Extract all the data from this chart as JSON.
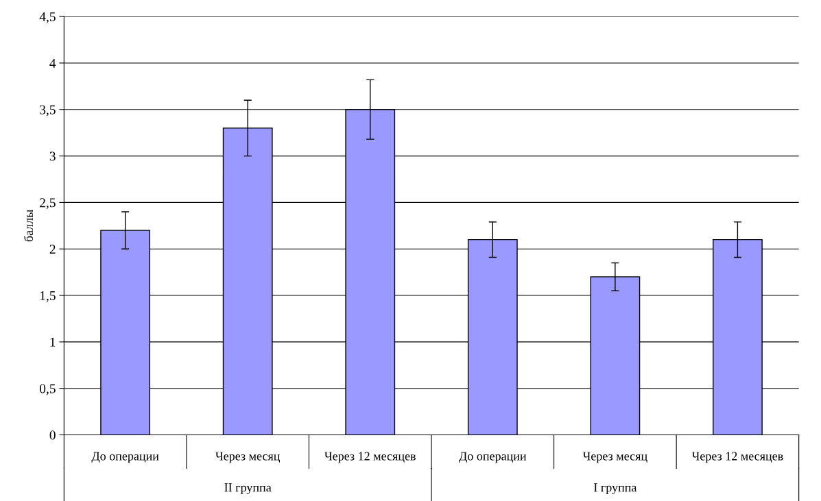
{
  "chart_data": {
    "type": "bar",
    "ylabel": "баллы",
    "categories": [
      "До операции",
      "Через месяц",
      "Через 12 месяцев",
      "До операции",
      "Через месяц",
      "Через 12 месяцев"
    ],
    "values": [
      2.2,
      3.3,
      3.5,
      2.1,
      1.7,
      2.1
    ],
    "errors": [
      0.2,
      0.3,
      0.32,
      0.19,
      0.15,
      0.19
    ],
    "color": "#9999ff",
    "ylim": [
      0,
      4.5
    ],
    "yticks": [
      0,
      {
        "value": 0.5,
        "label": "0,5"
      },
      1,
      {
        "value": 1.5,
        "label": "1,5"
      },
      2,
      {
        "value": 2.5,
        "label": "2,5"
      },
      3,
      {
        "value": 3.5,
        "label": "3,5"
      },
      4,
      {
        "value": 4.5,
        "label": "4,5"
      }
    ],
    "grid": "y",
    "annotations": [
      "II группа",
      "I группа"
    ]
  }
}
